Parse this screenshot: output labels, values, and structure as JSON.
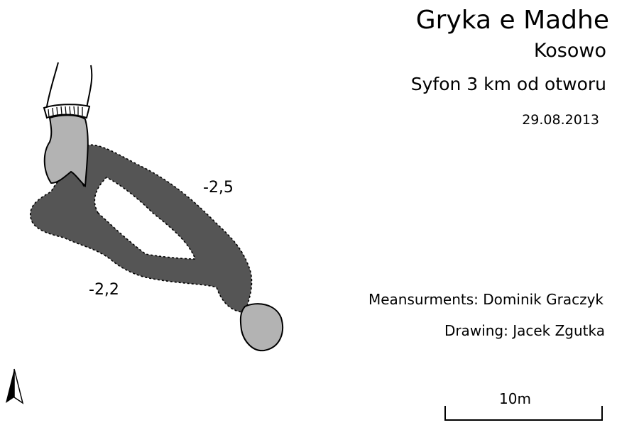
{
  "header": {
    "title": "Gryka e Madhe",
    "region": "Kosowo",
    "subtitle": "Syfon 3 km od otworu",
    "date": "29.08.2013"
  },
  "credits": {
    "measurements": "Meansurments: Dominik Graczyk",
    "drawing": "Drawing: Jacek Zgutka"
  },
  "depths": {
    "upper_passage": "-2,5",
    "lower_passage": "-2,2"
  },
  "scale_bar": {
    "label": "10m"
  },
  "map": {
    "water_color": "#555555",
    "air_color": "#b3b3b3",
    "north_arrow_icon": "north-arrow-icon"
  }
}
